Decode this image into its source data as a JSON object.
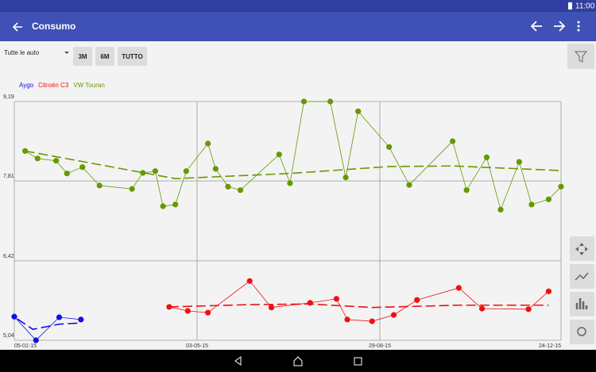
{
  "status_bar": {
    "time": "11:00"
  },
  "app_bar": {
    "title": "Consumo"
  },
  "filter": {
    "selected": "Tutte le auto",
    "buttons": [
      "3M",
      "6M",
      "TUTTO"
    ]
  },
  "chart_data": {
    "type": "line",
    "xlim": [
      "05-01-15",
      "24-12-15"
    ],
    "xticks": [
      "05-01-15",
      "03-05-15",
      "29-08-15",
      "24-12-15"
    ],
    "ylim": [
      5.04,
      9.19
    ],
    "yticks": [
      {
        "value": 5.04,
        "label": "5,04"
      },
      {
        "value": 6.42,
        "label": "6,42"
      },
      {
        "value": 7.81,
        "label": "7,81"
      },
      {
        "value": 9.19,
        "label": "9,19"
      }
    ],
    "grid": true,
    "legend": "top-left",
    "series": [
      {
        "name": "Aygo",
        "color": "#1010e8",
        "x": [
          "05-01-15",
          "19-01-15",
          "03-02-15",
          "17-02-15"
        ],
        "values": [
          5.45,
          5.04,
          5.44,
          5.4
        ],
        "trend": {
          "x": [
            "07-01-15",
            "17-01-15",
            "03-02-15",
            "17-02-15"
          ],
          "values": [
            5.41,
            5.23,
            5.32,
            5.34
          ]
        }
      },
      {
        "name": "Citroën C3",
        "color": "#f01010",
        "x": [
          "15-04-15",
          "27-04-15",
          "10-05-15",
          "06-06-15",
          "20-06-15",
          "15-07-15",
          "01-08-15",
          "08-08-15",
          "24-08-15",
          "07-09-15",
          "22-09-15",
          "19-10-15",
          "03-11-15",
          "03-12-15",
          "16-12-15"
        ],
        "values": [
          5.62,
          5.55,
          5.52,
          6.07,
          5.61,
          5.69,
          5.76,
          5.4,
          5.37,
          5.48,
          5.74,
          5.95,
          5.59,
          5.58,
          5.89
        ],
        "trend": {
          "x": [
            "15-04-15",
            "06-06-15",
            "15-07-15",
            "24-08-15",
            "19-10-15",
            "16-12-15"
          ],
          "values": [
            5.62,
            5.66,
            5.67,
            5.61,
            5.65,
            5.65
          ]
        }
      },
      {
        "name": "VW Touran",
        "color": "#669900",
        "x": [
          "12-01-15",
          "20-01-15",
          "01-02-15",
          "08-02-15",
          "18-02-15",
          "01-03-15",
          "22-03-15",
          "29-03-15",
          "06-04-15",
          "11-04-15",
          "19-04-15",
          "26-04-15",
          "10-05-15",
          "15-05-15",
          "23-05-15",
          "31-05-15",
          "25-06-15",
          "02-07-15",
          "11-07-15",
          "28-07-15",
          "07-08-15",
          "15-08-15",
          "04-09-15",
          "17-09-15",
          "15-10-15",
          "24-10-15",
          "06-11-15",
          "15-11-15",
          "27-11-15",
          "05-12-15",
          "16-12-15",
          "24-12-15"
        ],
        "values": [
          8.33,
          8.2,
          8.16,
          7.94,
          8.05,
          7.73,
          7.67,
          7.95,
          7.98,
          7.37,
          7.4,
          7.98,
          8.46,
          8.02,
          7.71,
          7.65,
          8.27,
          7.77,
          9.19,
          9.19,
          7.87,
          9.02,
          8.4,
          7.74,
          8.5,
          7.65,
          8.22,
          7.31,
          8.14,
          7.4,
          7.49,
          7.71
        ],
        "trend": {
          "x": [
            "12-01-15",
            "19-04-15",
            "02-07-15",
            "04-09-15",
            "15-10-15",
            "24-12-15"
          ],
          "values": [
            8.33,
            7.85,
            7.94,
            8.06,
            8.07,
            7.99
          ]
        }
      }
    ]
  }
}
